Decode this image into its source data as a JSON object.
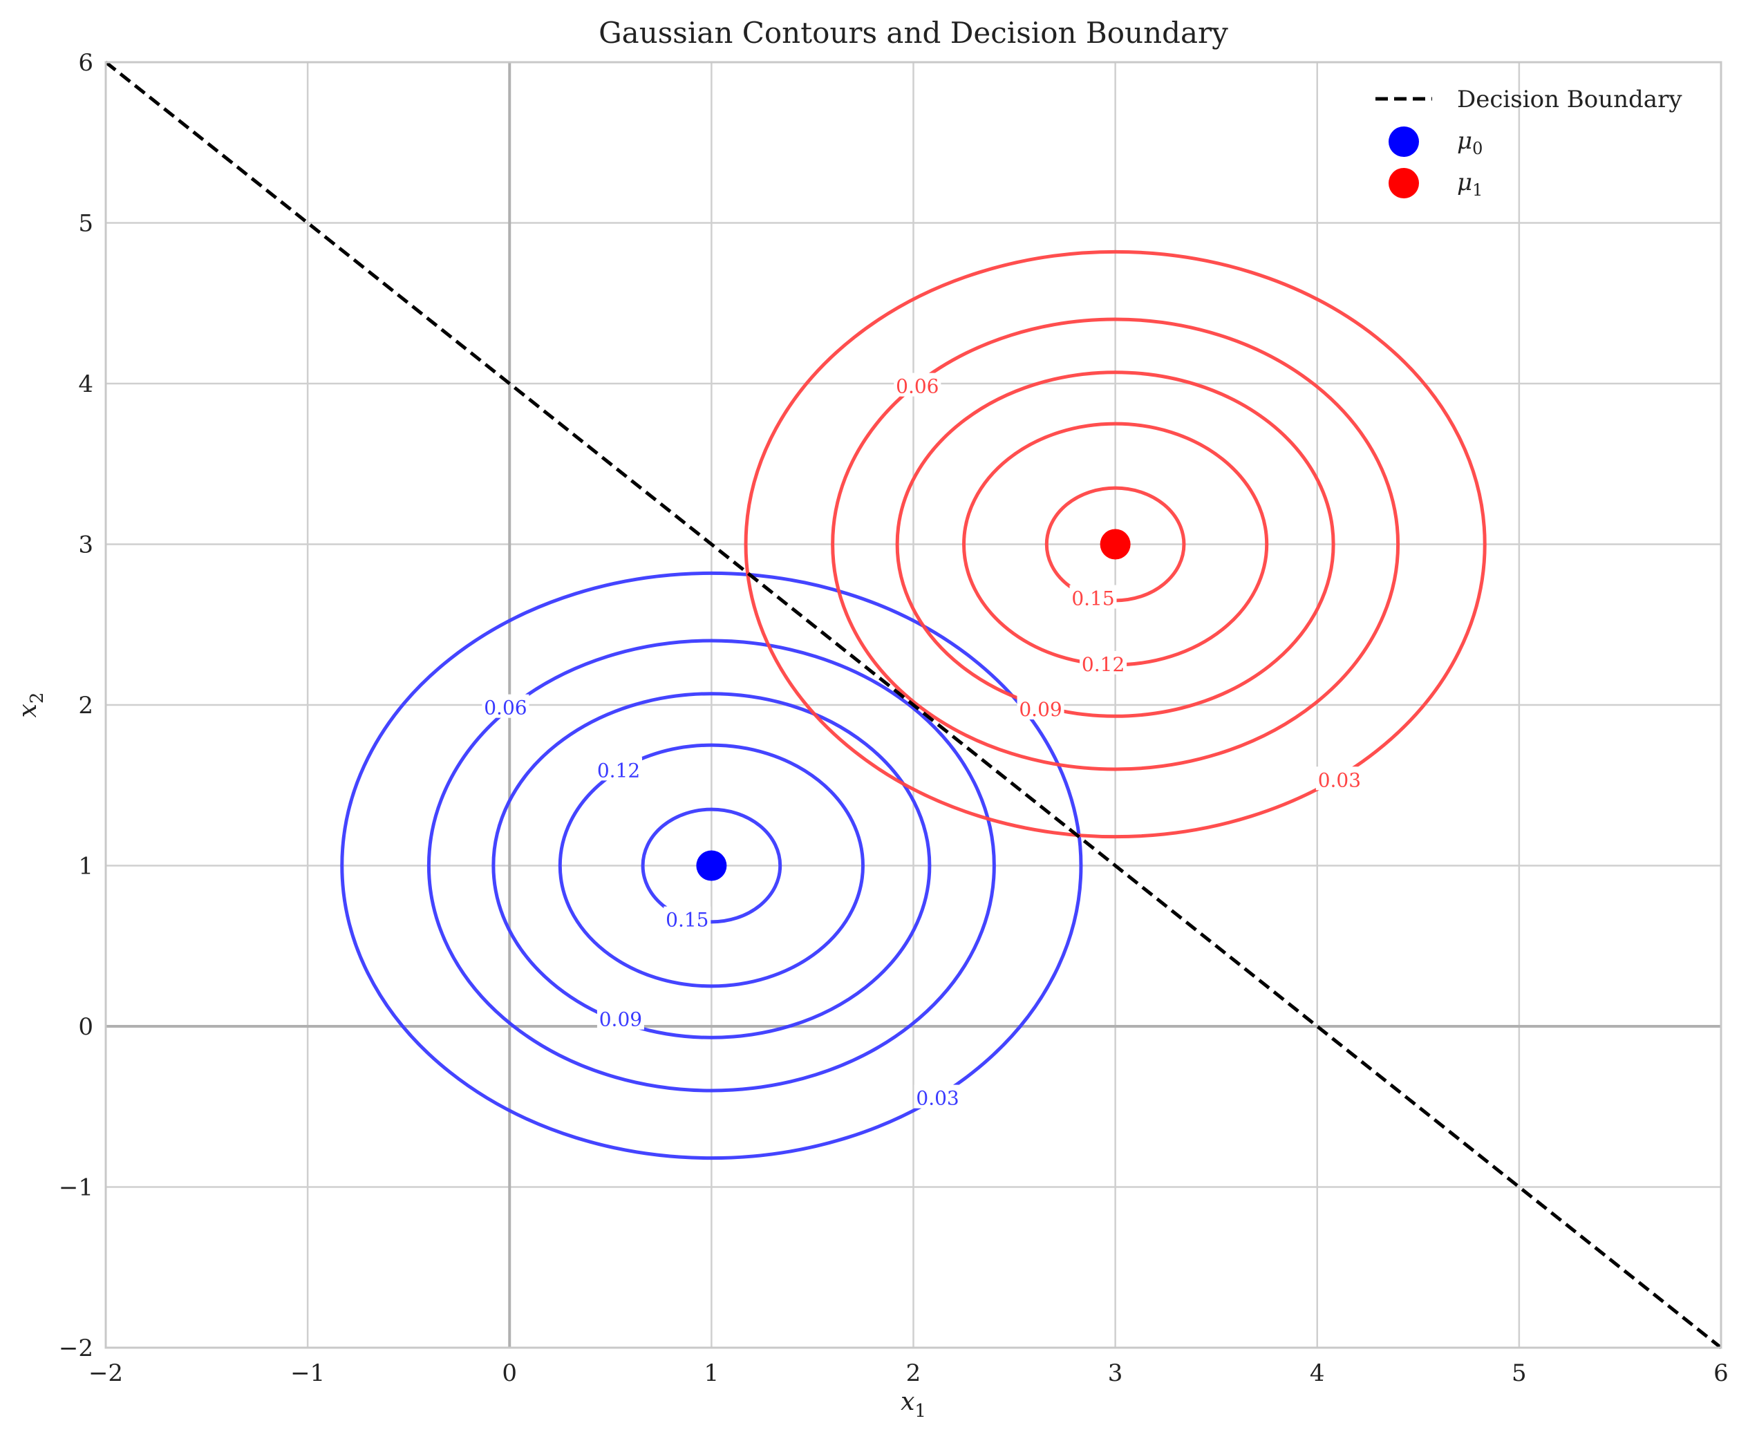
{
  "chart_data": {
    "type": "contour",
    "title": "Gaussian Contours and Decision Boundary",
    "xlabel_base": "x",
    "xlabel_sub": "1",
    "ylabel_base": "x",
    "ylabel_sub": "2",
    "xlim": [
      -2,
      6
    ],
    "ylim": [
      -2,
      6
    ],
    "xticks": [
      -2,
      -1,
      0,
      1,
      2,
      3,
      4,
      5,
      6
    ],
    "yticks": [
      -2,
      -1,
      0,
      1,
      2,
      3,
      4,
      5,
      6
    ],
    "xtick_labels": [
      "−2",
      "−1",
      "0",
      "1",
      "2",
      "3",
      "4",
      "5",
      "6"
    ],
    "ytick_labels": [
      "−2",
      "−1",
      "0",
      "1",
      "2",
      "3",
      "4",
      "5",
      "6"
    ],
    "grid": true,
    "legend_position": "top-right",
    "decision_boundary": {
      "label": "Decision Boundary",
      "color": "#000000",
      "style": "dashed",
      "points": [
        [
          -2,
          6
        ],
        [
          6,
          -2
        ]
      ]
    },
    "means": [
      {
        "label_base": "μ",
        "label_sub": "0",
        "x": 1,
        "y": 1,
        "color": "#0000ff"
      },
      {
        "label_base": "μ",
        "label_sub": "1",
        "x": 3,
        "y": 3,
        "color": "#ff0000"
      }
    ],
    "contour_sets": [
      {
        "color": "#3a3aff",
        "center": [
          1,
          1
        ],
        "rings": [
          {
            "level": "0.03",
            "rx": 1.83,
            "ry": 1.82
          },
          {
            "level": "0.06",
            "rx": 1.4,
            "ry": 1.4
          },
          {
            "level": "0.09",
            "rx": 1.08,
            "ry": 1.07
          },
          {
            "level": "0.12",
            "rx": 0.75,
            "ry": 0.75
          },
          {
            "level": "0.15",
            "rx": 0.34,
            "ry": 0.35
          }
        ],
        "labels": [
          {
            "text": "0.03",
            "x": 2.12,
            "y": -0.45
          },
          {
            "text": "0.06",
            "x": -0.02,
            "y": 1.98
          },
          {
            "text": "0.09",
            "x": 0.55,
            "y": 0.04
          },
          {
            "text": "0.12",
            "x": 0.54,
            "y": 1.59
          },
          {
            "text": "0.15",
            "x": 0.88,
            "y": 0.66
          }
        ]
      },
      {
        "color": "#ff4444",
        "center": [
          3,
          3
        ],
        "rings": [
          {
            "level": "0.03",
            "rx": 1.83,
            "ry": 1.82
          },
          {
            "level": "0.06",
            "rx": 1.4,
            "ry": 1.4
          },
          {
            "level": "0.09",
            "rx": 1.08,
            "ry": 1.07
          },
          {
            "level": "0.12",
            "rx": 0.75,
            "ry": 0.75
          },
          {
            "level": "0.15",
            "rx": 0.34,
            "ry": 0.35
          }
        ],
        "labels": [
          {
            "text": "0.03",
            "x": 4.11,
            "y": 1.53
          },
          {
            "text": "0.06",
            "x": 2.02,
            "y": 3.98
          },
          {
            "text": "0.09",
            "x": 2.63,
            "y": 1.97
          },
          {
            "text": "0.12",
            "x": 2.94,
            "y": 2.25
          },
          {
            "text": "0.15",
            "x": 2.89,
            "y": 2.66
          }
        ]
      }
    ]
  }
}
